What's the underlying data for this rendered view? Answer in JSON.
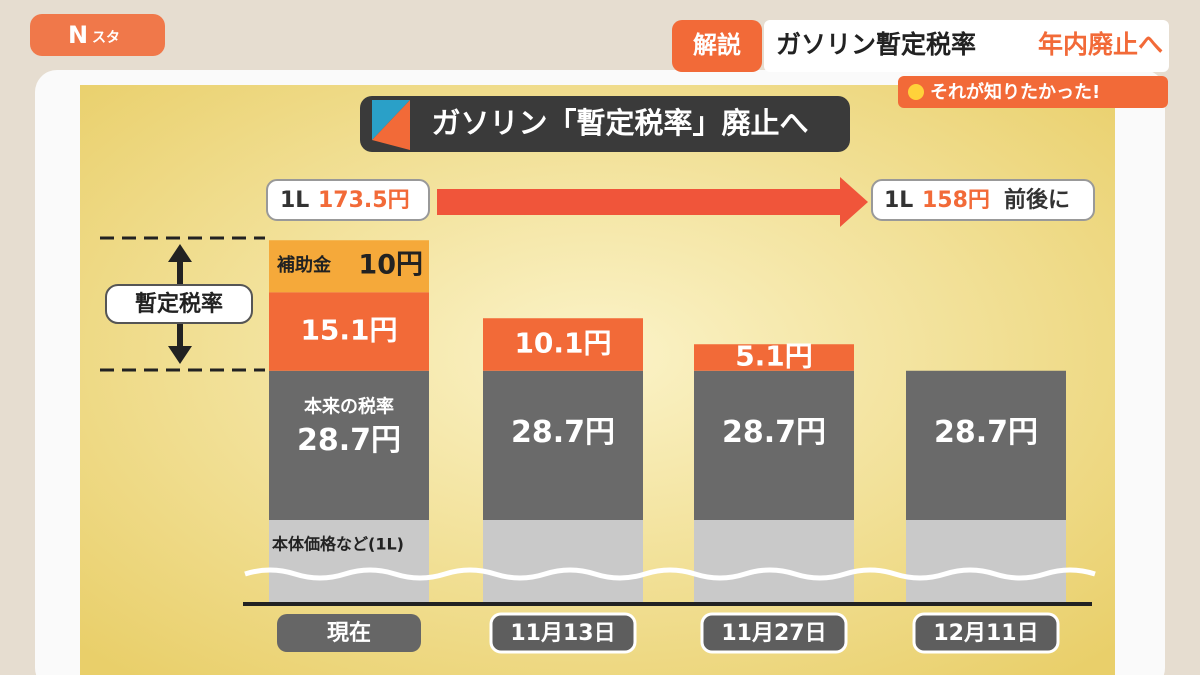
{
  "header": {
    "logo_main": "N",
    "logo_sub": "スタ",
    "tag": "解説",
    "headline": "ガソリン暫定税率",
    "headline_highlight": "年内廃止へ",
    "subline": "それが知りたかった!"
  },
  "chart_data": {
    "type": "stacked-bar",
    "title": "ガソリン「暫定税率」廃止へ",
    "price_now": {
      "unit": "1L",
      "price": "173.5円"
    },
    "price_after": {
      "unit": "1L",
      "price": "158円",
      "suffix": "前後に"
    },
    "base_label": "本体価格など(1L)",
    "categories": [
      "現在",
      "11月13日",
      "11月27日",
      "12月11日"
    ],
    "series": [
      {
        "name": "本来の税率",
        "color": "#6a6a6a",
        "values": [
          28.7,
          28.7,
          28.7,
          28.7
        ],
        "value_labels": [
          "28.7円",
          "28.7円",
          "28.7円",
          "28.7円"
        ]
      },
      {
        "name": "暫定税率",
        "color": "#f26a38",
        "values": [
          15.1,
          10.1,
          5.1,
          null
        ],
        "value_labels": [
          "15.1円",
          "10.1円",
          "5.1円",
          null
        ]
      },
      {
        "name": "補助金",
        "color": "#f5a93a",
        "values": [
          10,
          null,
          null,
          null
        ],
        "value_labels": [
          "10円",
          null,
          null,
          null
        ]
      }
    ]
  }
}
